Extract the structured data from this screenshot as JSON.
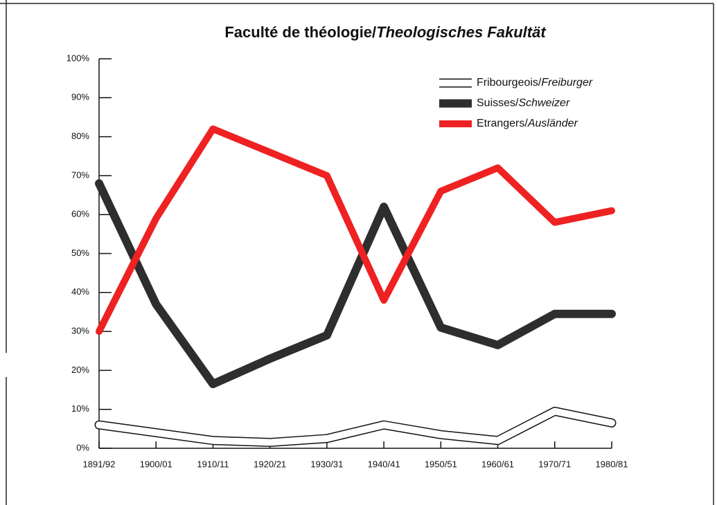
{
  "chart_data": {
    "type": "line",
    "title": "Faculté de théologie/Theologisches Fakultät",
    "categories": [
      "1891/92",
      "1900/01",
      "1910/11",
      "1920/21",
      "1930/31",
      "1940/41",
      "1950/51",
      "1960/61",
      "1970/71",
      "1980/81"
    ],
    "series": [
      {
        "name": "Fribourgeois/Freiburger",
        "color": "#ffffff",
        "values": [
          6,
          4,
          2,
          1.5,
          2.5,
          6,
          3.5,
          2,
          9.5,
          6.5
        ]
      },
      {
        "name": "Suisses/Schweizer",
        "color": "#2e2e2e",
        "values": [
          68,
          37,
          16.5,
          23,
          29,
          62,
          31,
          26.5,
          34.5,
          34.5
        ]
      },
      {
        "name": "Etrangers/Ausländer",
        "color": "#ee2222",
        "values": [
          30,
          59,
          82,
          76,
          70,
          38,
          66,
          72,
          58,
          61
        ]
      }
    ],
    "ylim": [
      0,
      100
    ],
    "yticks": [
      {
        "value": 0,
        "label": "0%"
      },
      {
        "value": 10,
        "label": "10%"
      },
      {
        "value": 20,
        "label": "20%"
      },
      {
        "value": 30,
        "label": "30%"
      },
      {
        "value": 40,
        "label": "40%"
      },
      {
        "value": 50,
        "label": "50%"
      },
      {
        "value": 60,
        "label": "60%"
      },
      {
        "value": 70,
        "label": "70%"
      },
      {
        "value": 80,
        "label": "80%"
      },
      {
        "value": 90,
        "label": "90%"
      },
      {
        "value": 100,
        "label": "100%"
      }
    ]
  }
}
